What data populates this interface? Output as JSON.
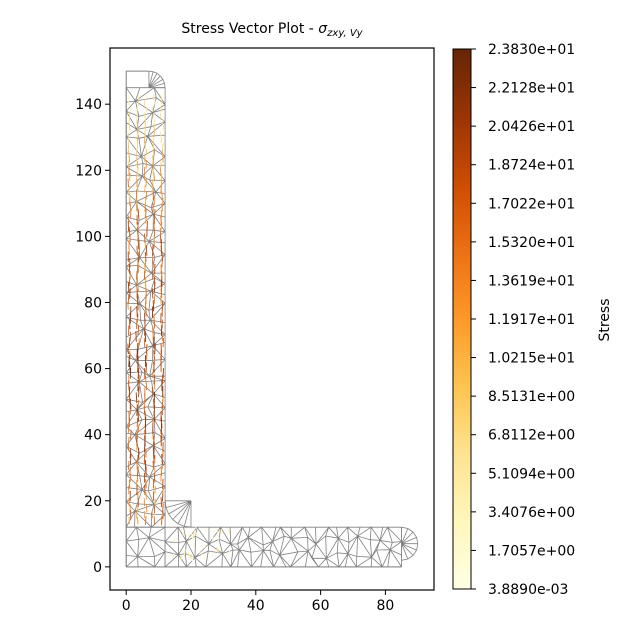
{
  "chart_data": {
    "type": "vector",
    "title": "Stress Vector Plot - ",
    "title_symbol": "σ",
    "title_subscript": "zxy, Vy",
    "xlabel": "",
    "ylabel": "",
    "xlim": [
      -5,
      95
    ],
    "ylim": [
      -7,
      157
    ],
    "x_ticks": [
      0,
      20,
      40,
      60,
      80
    ],
    "y_ticks": [
      0,
      20,
      40,
      60,
      80,
      100,
      120,
      140
    ],
    "x_tick_labels": [
      "0",
      "20",
      "40",
      "60",
      "80"
    ],
    "y_tick_labels": [
      "0",
      "20",
      "40",
      "60",
      "80",
      "100",
      "120",
      "140"
    ],
    "geometry": {
      "shape": "angle section",
      "leg_height": 150,
      "leg_width": 90,
      "thickness": 12,
      "root_radius": 8,
      "toe_radius": 5
    },
    "mesh_color": "#808080",
    "colorbar": {
      "label": "Stress",
      "min": 0.003889,
      "max": 23.83,
      "tick_values": [
        0.003889,
        1.7057,
        3.4076,
        5.1094,
        6.8112,
        8.5131,
        10.215,
        11.917,
        13.619,
        15.32,
        17.022,
        18.724,
        20.426,
        22.128,
        23.83
      ],
      "tick_labels": [
        "3.8890e-03",
        "1.7057e+00",
        "3.4076e+00",
        "5.1094e+00",
        "6.8112e+00",
        "8.5131e+00",
        "1.0215e+01",
        "1.1917e+01",
        "1.3619e+01",
        "1.5320e+01",
        "1.7022e+01",
        "1.8724e+01",
        "2.0426e+01",
        "2.2128e+01",
        "2.3830e+01"
      ],
      "colormap": "YlOrBr",
      "colors": [
        "#ffffe5",
        "#fff7bc",
        "#fee391",
        "#fec44f",
        "#fe9929",
        "#ec7014",
        "#cc4c02",
        "#993404",
        "#662506"
      ]
    }
  }
}
